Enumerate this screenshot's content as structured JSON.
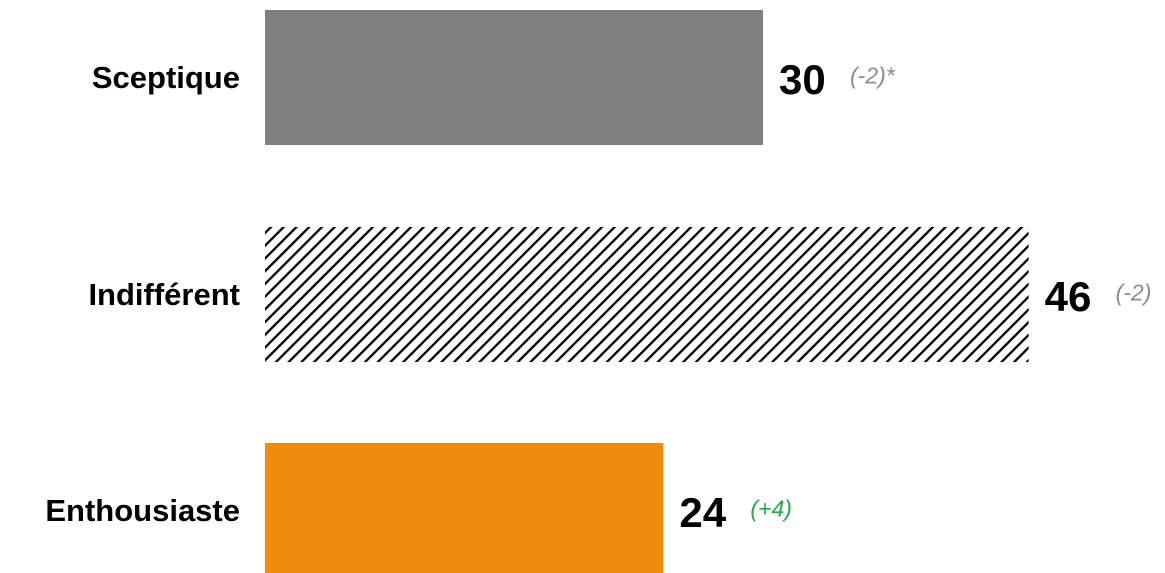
{
  "chart_data": {
    "type": "bar",
    "orientation": "horizontal",
    "categories": [
      "Sceptique",
      "Indifférent",
      "Enthousiaste"
    ],
    "values": [
      30,
      46,
      24
    ],
    "value_labels": [
      "30",
      "46",
      "24"
    ],
    "changes": [
      "(-2)*",
      "(-2)",
      "(+4)"
    ],
    "title": "",
    "xlabel": "",
    "ylabel": "",
    "xlim": [
      0,
      46
    ],
    "grid": false,
    "bars": [
      {
        "fill": "solid",
        "color": "#808080"
      },
      {
        "fill": "diagonal-hatch",
        "color": "#000000"
      },
      {
        "fill": "solid",
        "color": "#f08a0c"
      }
    ],
    "change_colors": [
      "#8c8c8c",
      "#8c8c8c",
      "#1fae4a"
    ]
  }
}
